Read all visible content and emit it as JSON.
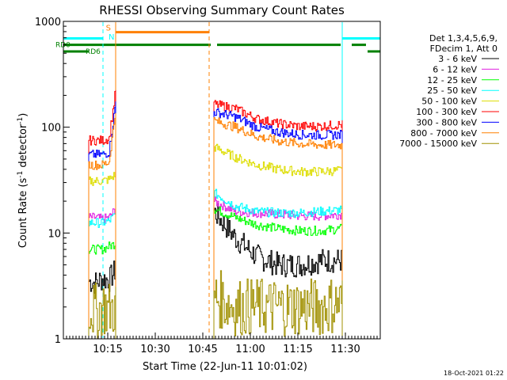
{
  "chart_data": {
    "type": "line",
    "title": "RHESSI Observing Summary Count Rates",
    "xlabel": "Start Time (22-Jun-11 10:01:02)",
    "ylabel_main": "Count Rate (s",
    "ylabel_sup": "-1",
    "ylabel_tail": " detector",
    "ylabel_close": ")",
    "y_scale": "log",
    "ylim": [
      1,
      1000
    ],
    "xlim_minutes": [
      0,
      100
    ],
    "x_ticks": [
      {
        "label": "10:15",
        "minute": 14
      },
      {
        "label": "10:30",
        "minute": 29
      },
      {
        "label": "10:45",
        "minute": 44
      },
      {
        "label": "11:00",
        "minute": 59
      },
      {
        "label": "11:15",
        "minute": 74
      },
      {
        "label": "11:30",
        "minute": 89
      }
    ],
    "y_ticks": [
      {
        "label": "1",
        "value": 1
      },
      {
        "label": "10",
        "value": 10
      },
      {
        "label": "100",
        "value": 100
      },
      {
        "label": "1000",
        "value": 1000
      }
    ],
    "legend_header": [
      "Det 1,3,4,5,6,9,",
      "FDecim 1, Att 0"
    ],
    "gaps": [
      {
        "start": 8,
        "end": 16.5
      },
      {
        "start": 47.5,
        "end": 88
      }
    ],
    "series": [
      {
        "name": "3 - 6 keV",
        "color": "#000000",
        "values": {
          "seg1": [
            3.5,
            3.4,
            3.7,
            3.6,
            4.5
          ],
          "seg2": [
            16,
            9,
            6,
            5,
            5,
            5.5,
            5.5
          ]
        }
      },
      {
        "name": "6 - 12 keV",
        "color": "#e020e0",
        "values": {
          "seg1": [
            14,
            14,
            13.5,
            14,
            17
          ],
          "seg2": [
            20,
            16,
            15.5,
            15,
            14.5,
            14.5,
            15
          ]
        }
      },
      {
        "name": "12 - 25 keV",
        "color": "#00ff00",
        "values": {
          "seg1": [
            7,
            7,
            7,
            7.5,
            8
          ],
          "seg2": [
            17,
            14,
            12,
            11,
            10.5,
            10.5,
            11
          ]
        }
      },
      {
        "name": "25 - 50 keV",
        "color": "#00ffff",
        "values": {
          "seg1": [
            12.5,
            12.5,
            12.5,
            13,
            15
          ],
          "seg2": [
            24,
            18,
            16,
            15.5,
            15.5,
            16,
            16.5
          ]
        }
      },
      {
        "name": "50 - 100 keV",
        "color": "#dddd00",
        "values": {
          "seg1": [
            31,
            31,
            31,
            32,
            36
          ],
          "seg2": [
            65,
            52,
            44,
            40,
            38,
            38,
            39
          ]
        }
      },
      {
        "name": "100 - 300 keV",
        "color": "#ff0000",
        "values": {
          "seg1": [
            75,
            75,
            75,
            78,
            230
          ],
          "seg2": [
            165,
            150,
            120,
            108,
            102,
            102,
            106
          ]
        }
      },
      {
        "name": "300 - 800 keV",
        "color": "#0000ff",
        "values": {
          "seg1": [
            55,
            55,
            55,
            58,
            175
          ],
          "seg2": [
            140,
            125,
            100,
            90,
            85,
            84,
            85
          ]
        }
      },
      {
        "name": "800 - 7000 keV",
        "color": "#ff8000",
        "values": {
          "seg1": [
            44,
            44,
            44,
            47,
            150
          ],
          "seg2": [
            115,
            100,
            82,
            74,
            70,
            68,
            68
          ]
        }
      },
      {
        "name": "7000 - 15000 keV",
        "color": "#a09000",
        "values": {
          "seg1": [
            2,
            1.8,
            2,
            1.9,
            2
          ],
          "seg2": [
            2.5,
            2,
            2,
            2,
            2,
            2,
            2.2
          ]
        }
      }
    ],
    "flags": [
      {
        "label": "RD0",
        "color": "#008000",
        "level": 600,
        "intervals": [
          [
            0,
            46.5
          ],
          [
            48.5,
            87.5
          ],
          [
            91,
            95.5
          ]
        ]
      },
      {
        "label": "RD6",
        "color": "#008000",
        "level": 520,
        "intervals": [
          [
            0,
            8
          ],
          [
            96,
            100
          ]
        ]
      },
      {
        "label": "SAA",
        "color": "#ff8000",
        "level": 790,
        "intervals": [
          [
            16.5,
            46
          ]
        ]
      },
      {
        "label": "night",
        "color": "#00ffff",
        "level": 690,
        "intervals": [
          [
            0,
            12.5
          ],
          [
            88,
            100
          ]
        ]
      }
    ],
    "flag_markers": [
      {
        "text": "S",
        "color": "#ff8000",
        "minute": 14.2,
        "value": 820
      },
      {
        "text": "N",
        "color": "#00ffff",
        "minute": 15.2,
        "value": 670
      }
    ],
    "vlines": [
      {
        "minute": 12.5,
        "color": "#00ffff",
        "dashed": true
      },
      {
        "minute": 16.5,
        "color": "#ff8000",
        "dashed": false
      },
      {
        "minute": 46,
        "color": "#ff8000",
        "dashed": true
      },
      {
        "minute": 88,
        "color": "#00ffff",
        "dashed": false
      },
      {
        "minute": 100,
        "color": "#00ffff",
        "dashed": true
      }
    ]
  },
  "footer": {
    "timestamp": "18-Oct-2021 01:22"
  }
}
